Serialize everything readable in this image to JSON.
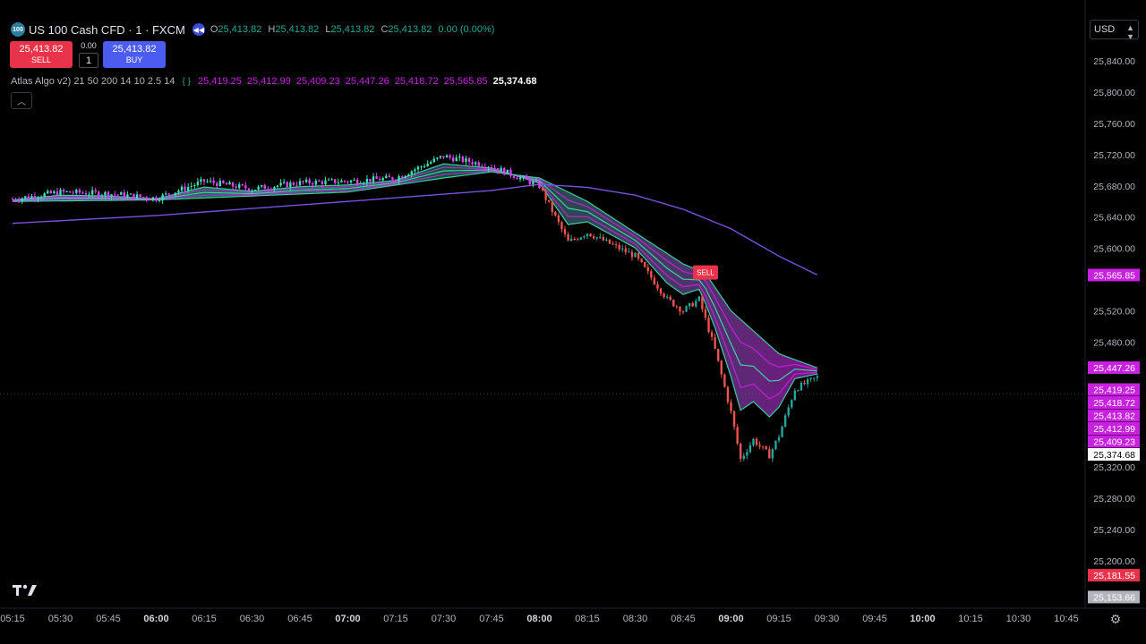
{
  "header": {
    "symbol_badge": "100",
    "symbol_title": "US 100 Cash CFD · 1 · FXCM",
    "replay_icon": "rewind-icon",
    "ohlc": {
      "o_label": "O",
      "o": "25,413.82",
      "h_label": "H",
      "h": "25,413.82",
      "l_label": "L",
      "l": "25,413.82",
      "c_label": "C",
      "c": "25,413.82",
      "change": "0.00 (0.00%)"
    }
  },
  "trade": {
    "sell_price": "25,413.82",
    "sell_label": "SELL",
    "spread": "0.00",
    "quantity": "1",
    "buy_price": "25,413.82",
    "buy_label": "BUY"
  },
  "indicator": {
    "name": "Atlas Algo v2) 21 50 200 14 10 2.5 14",
    "icon": "code-braces-icon",
    "values": [
      "25,419.25",
      "25,412.99",
      "25,409.23",
      "25,447.26",
      "25,418.72",
      "25,565.85"
    ],
    "last_value": "25,374.68"
  },
  "collapse_icon": "chevron-up-icon",
  "currency": {
    "value": "USD",
    "icon": "chevron-down-icon"
  },
  "colors": {
    "up": "#26a69a",
    "down": "#ef5350",
    "magenta": "#c822e0",
    "teal": "#3ee0b0",
    "sell": "#e8334a",
    "buy": "#4d5cf0"
  },
  "chart_data": {
    "type": "candlestick",
    "price_axis": {
      "ticks": [
        "25,840.00",
        "25,800.00",
        "25,760.00",
        "25,720.00",
        "25,680.00",
        "25,640.00",
        "25,600.00",
        "25,520.00",
        "25,480.00",
        "25,320.00",
        "25,280.00",
        "25,240.00",
        "25,200.00"
      ],
      "ylim": [
        25150,
        25870
      ]
    },
    "time_axis": {
      "ticks": [
        "05:15",
        "05:30",
        "05:45",
        "06:00",
        "06:15",
        "06:30",
        "06:45",
        "07:00",
        "07:15",
        "07:30",
        "07:45",
        "08:00",
        "08:15",
        "08:30",
        "08:45",
        "09:00",
        "09:15",
        "09:30",
        "09:45",
        "10:00",
        "10:15",
        "10:30",
        "10:45"
      ],
      "bold": [
        "06:00",
        "07:00",
        "08:00",
        "09:00",
        "10:00"
      ]
    },
    "price_labels": [
      {
        "text": "25,565.85",
        "value": 25565.85,
        "color": "#c822e0",
        "text_color": "#ffffff"
      },
      {
        "text": "25,447.26",
        "value": 25447.26,
        "color": "#c822e0",
        "text_color": "#ffffff"
      },
      {
        "text": "25,419.25",
        "value": 25419.25,
        "color": "#c822e0",
        "text_color": "#ffffff"
      },
      {
        "text": "25,418.72",
        "value": 25418.72,
        "color": "#c822e0",
        "text_color": "#ffffff"
      },
      {
        "text": "25,413.82",
        "value": 25413.82,
        "color": "#c822e0",
        "text_color": "#ffffff"
      },
      {
        "text": "25,412.99",
        "value": 25412.99,
        "color": "#c822e0",
        "text_color": "#ffffff"
      },
      {
        "text": "25,409.23",
        "value": 25409.23,
        "color": "#c822e0",
        "text_color": "#ffffff"
      },
      {
        "text": "25,374.68",
        "value": 25374.68,
        "color": "#ffffff",
        "text_color": "#000000"
      },
      {
        "text": "25,181.55",
        "value": 25181.55,
        "color": "#e8334a",
        "text_color": "#ffffff"
      },
      {
        "text": "25,153.66",
        "value": 25153.66,
        "color": "#b2b5be",
        "text_color": "#ffffff"
      }
    ],
    "price_path": [
      [
        "05:15",
        25663
      ],
      [
        "05:30",
        25672
      ],
      [
        "05:45",
        25670
      ],
      [
        "06:00",
        25664
      ],
      [
        "06:15",
        25686
      ],
      [
        "06:30",
        25676
      ],
      [
        "06:45",
        25684
      ],
      [
        "07:00",
        25686
      ],
      [
        "07:15",
        25690
      ],
      [
        "07:30",
        25718
      ],
      [
        "07:45",
        25705
      ],
      [
        "08:00",
        25680
      ],
      [
        "08:09",
        25608
      ],
      [
        "08:15",
        25620
      ],
      [
        "08:30",
        25590
      ],
      [
        "08:40",
        25535
      ],
      [
        "08:45",
        25520
      ],
      [
        "08:50",
        25535
      ],
      [
        "08:55",
        25470
      ],
      [
        "09:00",
        25390
      ],
      [
        "09:03",
        25330
      ],
      [
        "09:07",
        25355
      ],
      [
        "09:12",
        25335
      ],
      [
        "09:15",
        25360
      ],
      [
        "09:20",
        25420
      ],
      [
        "09:27",
        25435
      ]
    ],
    "ma_slow": [
      [
        "05:15",
        25632
      ],
      [
        "06:00",
        25642
      ],
      [
        "07:00",
        25660
      ],
      [
        "07:45",
        25674
      ],
      [
        "08:00",
        25682
      ],
      [
        "08:15",
        25678
      ],
      [
        "08:30",
        25668
      ],
      [
        "08:45",
        25650
      ],
      [
        "09:00",
        25625
      ],
      [
        "09:15",
        25590
      ],
      [
        "09:27",
        25566
      ]
    ],
    "ma_mid": [
      [
        "05:15",
        25660
      ],
      [
        "06:00",
        25662
      ],
      [
        "07:00",
        25672
      ],
      [
        "07:30",
        25690
      ],
      [
        "07:45",
        25698
      ],
      [
        "08:00",
        25690
      ],
      [
        "08:15",
        25660
      ],
      [
        "08:30",
        25620
      ],
      [
        "08:45",
        25580
      ],
      [
        "08:52",
        25568
      ],
      [
        "09:00",
        25520
      ],
      [
        "09:15",
        25465
      ],
      [
        "09:27",
        25447
      ]
    ],
    "sell_marker": {
      "label": "SELL",
      "time": "08:52",
      "value": 25568
    }
  }
}
